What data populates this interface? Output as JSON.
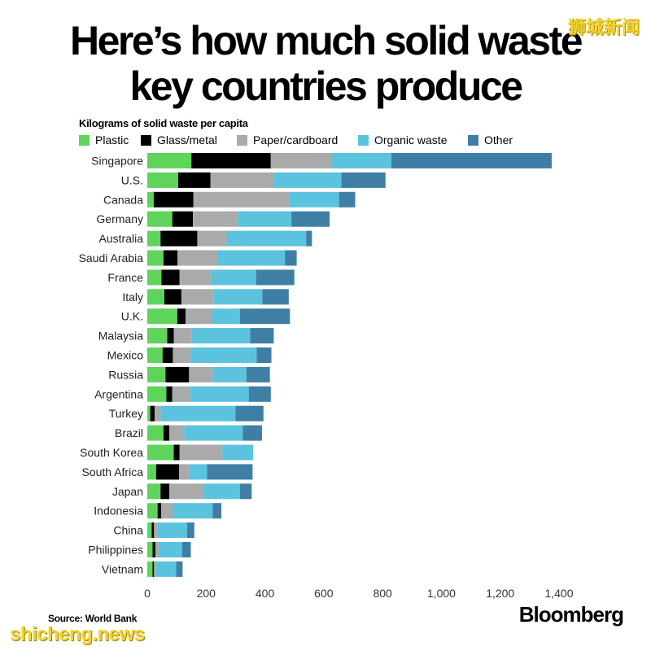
{
  "header": {
    "title_line1": "Here’s how much solid waste",
    "title_line2": "key countries produce",
    "watermark_cn": "狮城新闻"
  },
  "footer": {
    "source": "Source: World Bank",
    "brand": "Bloomberg",
    "watermark_url": "shicheng.news"
  },
  "chart_data": {
    "type": "bar",
    "orientation": "horizontal",
    "stacked": true,
    "subtitle": "Kilograms of solid waste per capita",
    "categories": [
      "Singapore",
      "U.S.",
      "Canada",
      "Germany",
      "Australia",
      "Saudi Arabia",
      "France",
      "Italy",
      "U.K.",
      "Malaysia",
      "Mexico",
      "Russia",
      "Argentina",
      "Turkey",
      "Brazil",
      "South Korea",
      "South Africa",
      "Japan",
      "Indonesia",
      "China",
      "Philippines",
      "Vietnam"
    ],
    "series": [
      {
        "name": "Plastic",
        "color": "#5ed45a",
        "values": [
          150,
          105,
          22,
          85,
          45,
          55,
          48,
          58,
          102,
          68,
          52,
          62,
          65,
          10,
          55,
          90,
          30,
          45,
          35,
          15,
          18,
          18
        ]
      },
      {
        "name": "Glass/metal",
        "color": "#000000",
        "values": [
          270,
          110,
          135,
          70,
          125,
          48,
          62,
          58,
          28,
          22,
          35,
          80,
          20,
          15,
          20,
          20,
          78,
          30,
          12,
          8,
          10,
          5
        ]
      },
      {
        "name": "Paper/cardboard",
        "color": "#aaaaaa",
        "values": [
          205,
          215,
          325,
          150,
          100,
          135,
          105,
          110,
          90,
          60,
          60,
          80,
          60,
          20,
          50,
          145,
          35,
          115,
          40,
          12,
          10,
          5
        ]
      },
      {
        "name": "Organic waste",
        "color": "#5bc3dd",
        "values": [
          205,
          230,
          170,
          185,
          270,
          230,
          155,
          165,
          95,
          200,
          225,
          115,
          200,
          255,
          200,
          105,
          60,
          125,
          135,
          100,
          80,
          70
        ]
      },
      {
        "name": "Other",
        "color": "#3f7fa6",
        "values": [
          545,
          150,
          55,
          130,
          20,
          40,
          130,
          90,
          170,
          80,
          50,
          80,
          75,
          95,
          65,
          0,
          155,
          40,
          30,
          25,
          30,
          22
        ]
      }
    ],
    "xlim": [
      0,
      1400
    ],
    "xticks": [
      0,
      200,
      400,
      600,
      800,
      1000,
      1200,
      1400
    ],
    "xtick_labels": [
      "0",
      "200",
      "400",
      "600",
      "800",
      "1,000",
      "1,200",
      "1,400"
    ],
    "xlabel": "",
    "ylabel": "",
    "grid": false,
    "legend_position": "top-left"
  }
}
